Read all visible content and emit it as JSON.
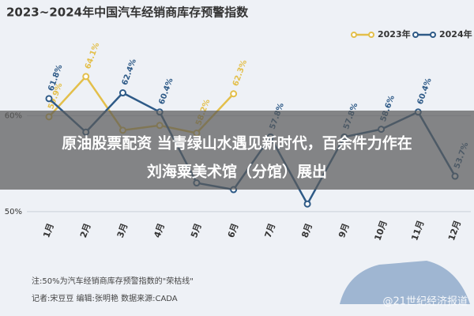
{
  "chart_data": {
    "type": "line",
    "title": "2023~2024年中国汽车经销商库存预警指数",
    "categories": [
      "1月",
      "2月",
      "3月",
      "4月",
      "5月",
      "6月",
      "7月",
      "8月",
      "9月",
      "10月",
      "11月",
      "12月"
    ],
    "series": [
      {
        "name": "2023年",
        "color": "#e3bf4a",
        "values": [
          59.9,
          64.1,
          58.5,
          59.0,
          58.2,
          62.3,
          null,
          null,
          null,
          null,
          null,
          null
        ],
        "value_labels": [
          "59.9%",
          "64.1%",
          null,
          null,
          "58.2%",
          "62.3%",
          null,
          null,
          null,
          null,
          null,
          null
        ]
      },
      {
        "name": "2024年",
        "color": "#2e5a87",
        "values": [
          61.8,
          58.3,
          62.4,
          60.4,
          53.0,
          52.3,
          57.8,
          50.8,
          57.8,
          58.6,
          60.4,
          53.7
        ],
        "value_labels": [
          "61.8%",
          null,
          "62.4%",
          "60.4%",
          null,
          null,
          "57.8%",
          null,
          "57.8%",
          "58.6%",
          "60.4%",
          "53.7%"
        ]
      }
    ],
    "ylim": [
      49.5,
      65
    ],
    "yticks": [
      {
        "value": 50,
        "label": "50%"
      },
      {
        "value": 60,
        "label": "60%"
      }
    ],
    "grid": true,
    "legend": "top-right",
    "note": "注:50%为汽车经销商库存预警指数的\"荣枯线\"",
    "credits": "记者:宋豆豆 编辑:张明艳 数据来源:CADA",
    "overlay": [
      "原油股票配资 当青绿山水遇见新时代，百余件力作在",
      "刘海粟美术馆（分馆）展出"
    ],
    "watermark": "@21世纪经济报道"
  }
}
